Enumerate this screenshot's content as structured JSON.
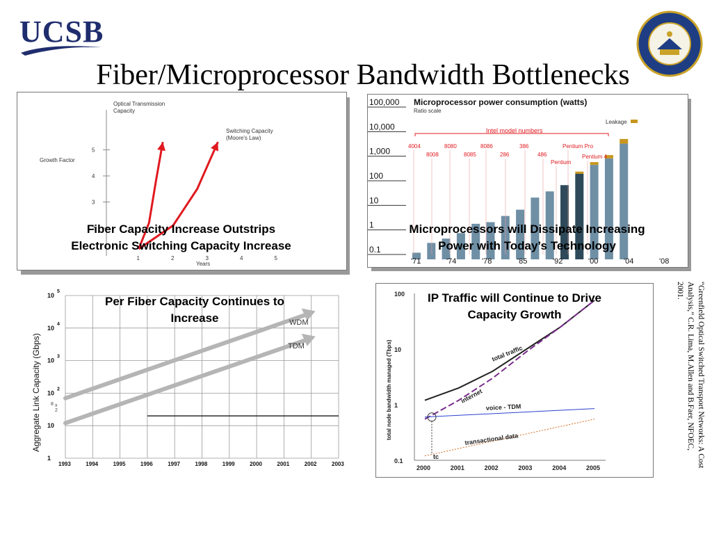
{
  "header": {
    "logo_text": "UCSB",
    "title": "Fiber/Microprocessor Bandwidth Bottlenecks",
    "seal_lettering": "UNIVERSITY OF CALIFORNIA SANTA BARBARA"
  },
  "colors": {
    "accent_red": "#e0191f",
    "navy": "#1f2d6e",
    "bar_blue": "#6f8fa5",
    "bar_dark": "#2e4a5a",
    "leakage": "#c8961e",
    "purple": "#7a2d8c"
  },
  "panels": {
    "fiber": {
      "caption_line1": "Fiber Capacity Increase Outstrips",
      "caption_line2": "Electronic Switching Capacity Increase"
    },
    "micro": {
      "caption_line1": "Microprocessors will Dissipate Increasing",
      "caption_line2": "Power with Today’s Technology"
    },
    "perfiber": {
      "caption_line1": "Per Fiber Capacity Continues to",
      "caption_line2": "Increase"
    },
    "iptraffic": {
      "caption_line1": "IP Traffic will Continue to Drive",
      "caption_line2": "Capacity Growth"
    }
  },
  "citation": "“Greenfield Optical Switched Transport Networks: A Cost Analysis,” C.R. Lima, M.Allen and B.Faer, NFOEC, 2001.",
  "chart_data": [
    {
      "type": "line",
      "title": "",
      "xlabel": "Years",
      "ylabel": "Growth Factor",
      "x_ticks": [
        "1",
        "2",
        "3",
        "4",
        "5"
      ],
      "y_ticks": [
        "2",
        "3",
        "4",
        "5"
      ],
      "series": [
        {
          "name": "Optical Transmission Capacity",
          "x": [
            1.0,
            1.3,
            1.5,
            1.7
          ],
          "y": [
            1.2,
            2.2,
            3.8,
            5.3
          ]
        },
        {
          "name": "Switching Capacity (Moore's Law)",
          "x": [
            1.0,
            2.0,
            2.7,
            3.3
          ],
          "y": [
            1.2,
            2.1,
            3.5,
            5.3
          ]
        }
      ],
      "labels": [
        "Optical Transmission",
        "Capacity",
        "Switching Capacity",
        "(Moore's Law)"
      ]
    },
    {
      "type": "bar",
      "title": "Microprocessor power consumption (watts)",
      "subtitle": "Ratio scale",
      "y_scale": "log",
      "y_ticks": [
        "0.1",
        "1",
        "10",
        "100",
        "1,000",
        "10,000",
        "100,000"
      ],
      "x_ticks": [
        "'71",
        "'74",
        "'78",
        "'85",
        "'92",
        "'00",
        "'04",
        "'08"
      ],
      "bracket_label": "Intel model numbers",
      "models": [
        "4004",
        "8008",
        "8080",
        "8085",
        "8086",
        "286",
        "386",
        "486",
        "Pentium",
        "Pentium Pro",
        "Pentium 4"
      ],
      "legend": "Leakage",
      "values": [
        0.08,
        0.2,
        0.3,
        0.5,
        1.2,
        1.4,
        2.5,
        4.5,
        14,
        25,
        45,
        130,
        300,
        550,
        2200
      ],
      "leakage_values": [
        0,
        0,
        0,
        0,
        0,
        0,
        0,
        0,
        0,
        0,
        0,
        30,
        90,
        200,
        1200
      ]
    },
    {
      "type": "line",
      "title": "",
      "ylabel": "Aggregate Link Capacity (Gbps)",
      "y_scale": "log",
      "x_ticks": [
        "1993",
        "1994",
        "1995",
        "1996",
        "1997",
        "1998",
        "1999",
        "2000",
        "2001",
        "2002",
        "2003"
      ],
      "y_tick_bases": [
        "1",
        "10",
        "10",
        "10",
        "10",
        "10"
      ],
      "y_tick_exponents": [
        "",
        "",
        "2",
        "3",
        "4",
        "5"
      ],
      "series": [
        {
          "name": "WDM",
          "x": [
            1993,
            2002
          ],
          "y": [
            70,
            30000
          ]
        },
        {
          "name": "TDM",
          "x": [
            1993,
            2002
          ],
          "y": [
            12,
            5000
          ]
        }
      ],
      "reference_line_y": 20,
      "stray_text": "8",
      "stray_text2": "x",
      "stray_text3": "2"
    },
    {
      "type": "line",
      "title": "",
      "ylabel": "total node bandwidth managed (Tbps)",
      "y_scale": "log",
      "y_ticks": [
        "0.1",
        "1",
        "10",
        "100"
      ],
      "x_ticks": [
        "2000",
        "2001",
        "2002",
        "2003",
        "2004",
        "2005"
      ],
      "series": [
        {
          "name": "total traffic",
          "x": [
            2000,
            2001,
            2002,
            2003,
            2004,
            2005
          ],
          "y": [
            1.2,
            2.0,
            4.0,
            10,
            25,
            75
          ]
        },
        {
          "name": "internet",
          "x": [
            2000,
            2001,
            2002,
            2003,
            2004,
            2005
          ],
          "y": [
            0.55,
            1.2,
            3.0,
            9,
            25,
            75
          ]
        },
        {
          "name": "voice - TDM",
          "x": [
            2000,
            2005
          ],
          "y": [
            0.6,
            0.85
          ]
        },
        {
          "name": "transactional data",
          "x": [
            2000,
            2005
          ],
          "y": [
            0.12,
            0.55
          ]
        }
      ],
      "annotation": "tc"
    }
  ]
}
